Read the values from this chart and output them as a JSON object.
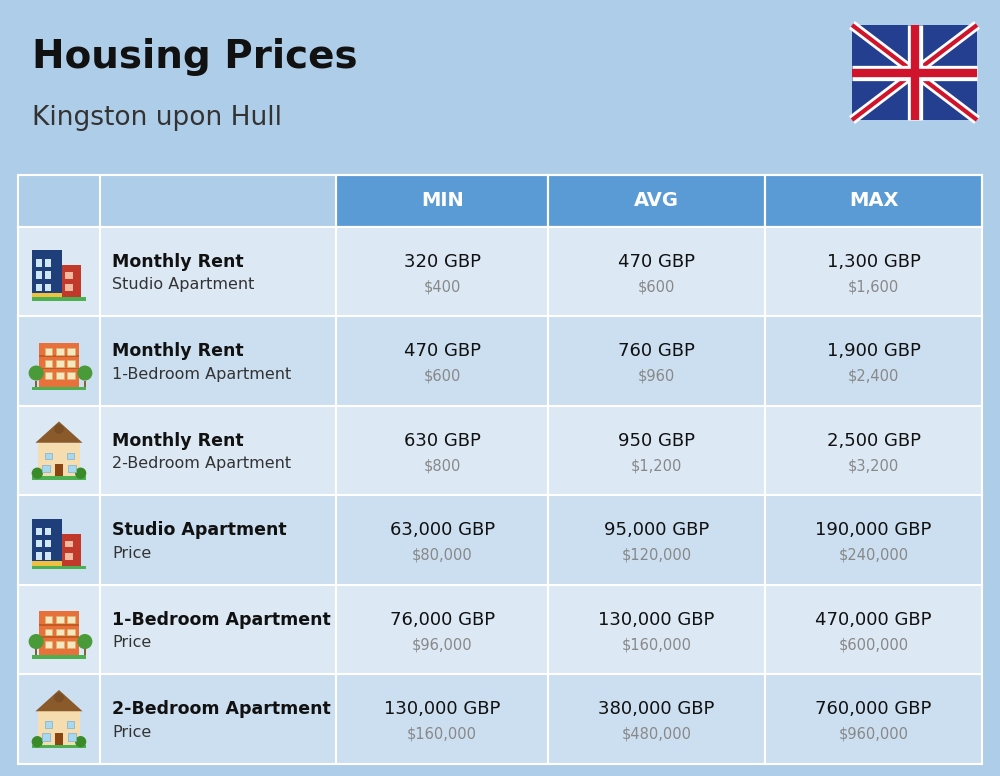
{
  "title": "Housing Prices",
  "subtitle": "Kingston upon Hull",
  "background_color": "#aecde8",
  "header_bg_color": "#5b9bd5",
  "header_text_color": "#ffffff",
  "row_bg_even": "#dce9f5",
  "row_bg_odd": "#ccdff0",
  "col_headers": [
    "MIN",
    "AVG",
    "MAX"
  ],
  "rows": [
    {
      "label_bold": "Monthly Rent",
      "label_sub": "Studio Apartment",
      "min_gbp": "320 GBP",
      "min_usd": "$400",
      "avg_gbp": "470 GBP",
      "avg_usd": "$600",
      "max_gbp": "1,300 GBP",
      "max_usd": "$1,600",
      "icon_type": "blue_studio"
    },
    {
      "label_bold": "Monthly Rent",
      "label_sub": "1-Bedroom Apartment",
      "min_gbp": "470 GBP",
      "min_usd": "$600",
      "avg_gbp": "760 GBP",
      "avg_usd": "$960",
      "max_gbp": "1,900 GBP",
      "max_usd": "$2,400",
      "icon_type": "orange_apt"
    },
    {
      "label_bold": "Monthly Rent",
      "label_sub": "2-Bedroom Apartment",
      "min_gbp": "630 GBP",
      "min_usd": "$800",
      "avg_gbp": "950 GBP",
      "avg_usd": "$1,200",
      "max_gbp": "2,500 GBP",
      "max_usd": "$3,200",
      "icon_type": "beige_house"
    },
    {
      "label_bold": "Studio Apartment",
      "label_sub": "Price",
      "min_gbp": "63,000 GBP",
      "min_usd": "$80,000",
      "avg_gbp": "95,000 GBP",
      "avg_usd": "$120,000",
      "max_gbp": "190,000 GBP",
      "max_usd": "$240,000",
      "icon_type": "blue_studio"
    },
    {
      "label_bold": "1-Bedroom Apartment",
      "label_sub": "Price",
      "min_gbp": "76,000 GBP",
      "min_usd": "$96,000",
      "avg_gbp": "130,000 GBP",
      "avg_usd": "$160,000",
      "max_gbp": "470,000 GBP",
      "max_usd": "$600,000",
      "icon_type": "orange_apt"
    },
    {
      "label_bold": "2-Bedroom Apartment",
      "label_sub": "Price",
      "min_gbp": "130,000 GBP",
      "min_usd": "$160,000",
      "avg_gbp": "380,000 GBP",
      "avg_usd": "$480,000",
      "max_gbp": "760,000 GBP",
      "max_usd": "$960,000",
      "icon_type": "beige_house"
    }
  ]
}
